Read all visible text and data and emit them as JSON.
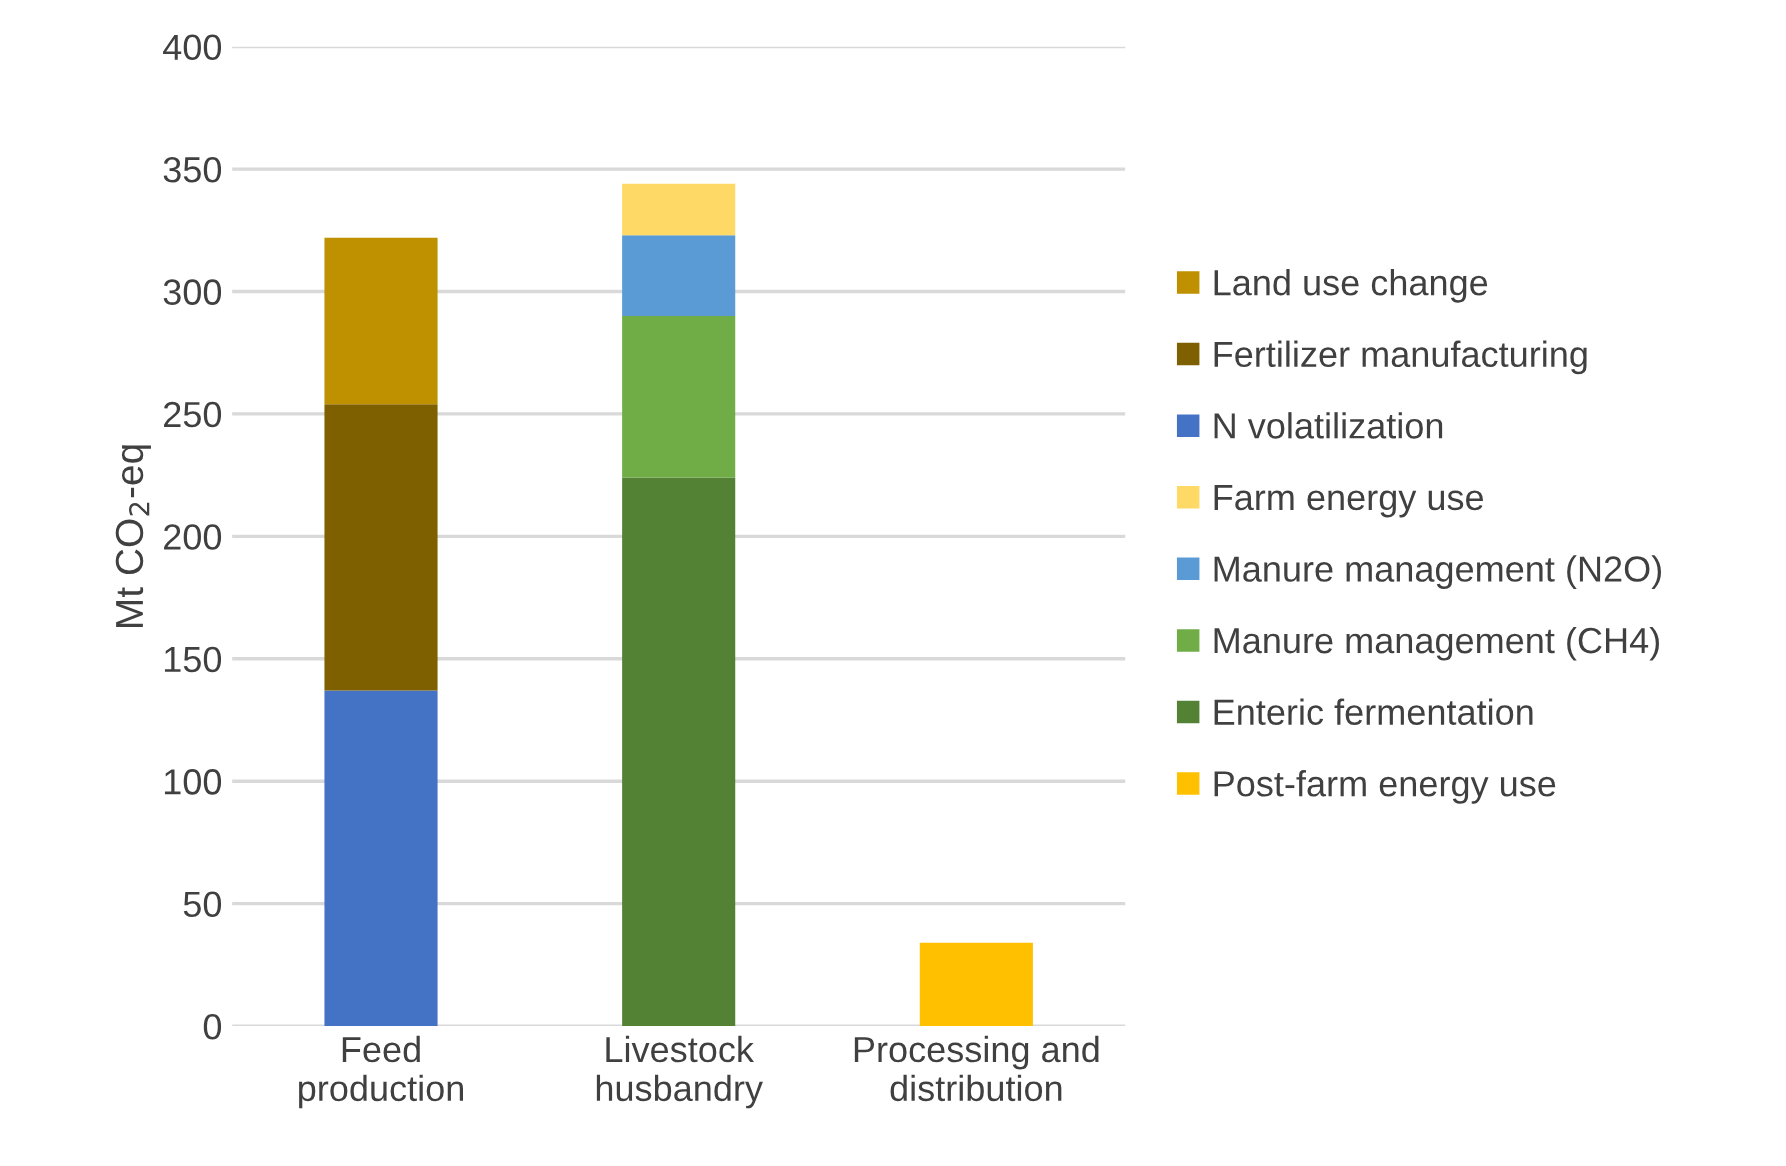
{
  "chart_data": {
    "type": "bar",
    "stacked": true,
    "ylabel": "Mt CO$_{2}$-eq",
    "categories": [
      "Feed\nproduction",
      "Livestock\nhusbandry",
      "Processing and\ndistribution"
    ],
    "series": [
      {
        "name": "Post-farm energy use",
        "color": "#ffc000",
        "values": [
          null,
          null,
          34
        ]
      },
      {
        "name": "Enteric fermentation",
        "color": "#548235",
        "values": [
          null,
          224,
          null
        ]
      },
      {
        "name": "Manure management (CH4)",
        "color": "#70ad47",
        "values": [
          null,
          66,
          null
        ]
      },
      {
        "name": "Manure management (N2O)",
        "color": "#5b9bd5",
        "values": [
          null,
          33,
          null
        ]
      },
      {
        "name": "Farm energy use",
        "color": "#ffd966",
        "values": [
          null,
          21,
          null
        ]
      },
      {
        "name": "N volatilization",
        "color": "#4472c4",
        "values": [
          137,
          null,
          null
        ]
      },
      {
        "name": "Fertilizer manufacturing",
        "color": "#7f6000",
        "values": [
          117,
          null,
          null
        ]
      },
      {
        "name": "Land use change",
        "color": "#bf9000",
        "values": [
          68,
          null,
          null
        ]
      }
    ],
    "ylim": [
      0,
      400
    ],
    "yticks": [
      0,
      50,
      100,
      150,
      200,
      250,
      300,
      350,
      400
    ],
    "grid": "y",
    "legend": "right"
  }
}
